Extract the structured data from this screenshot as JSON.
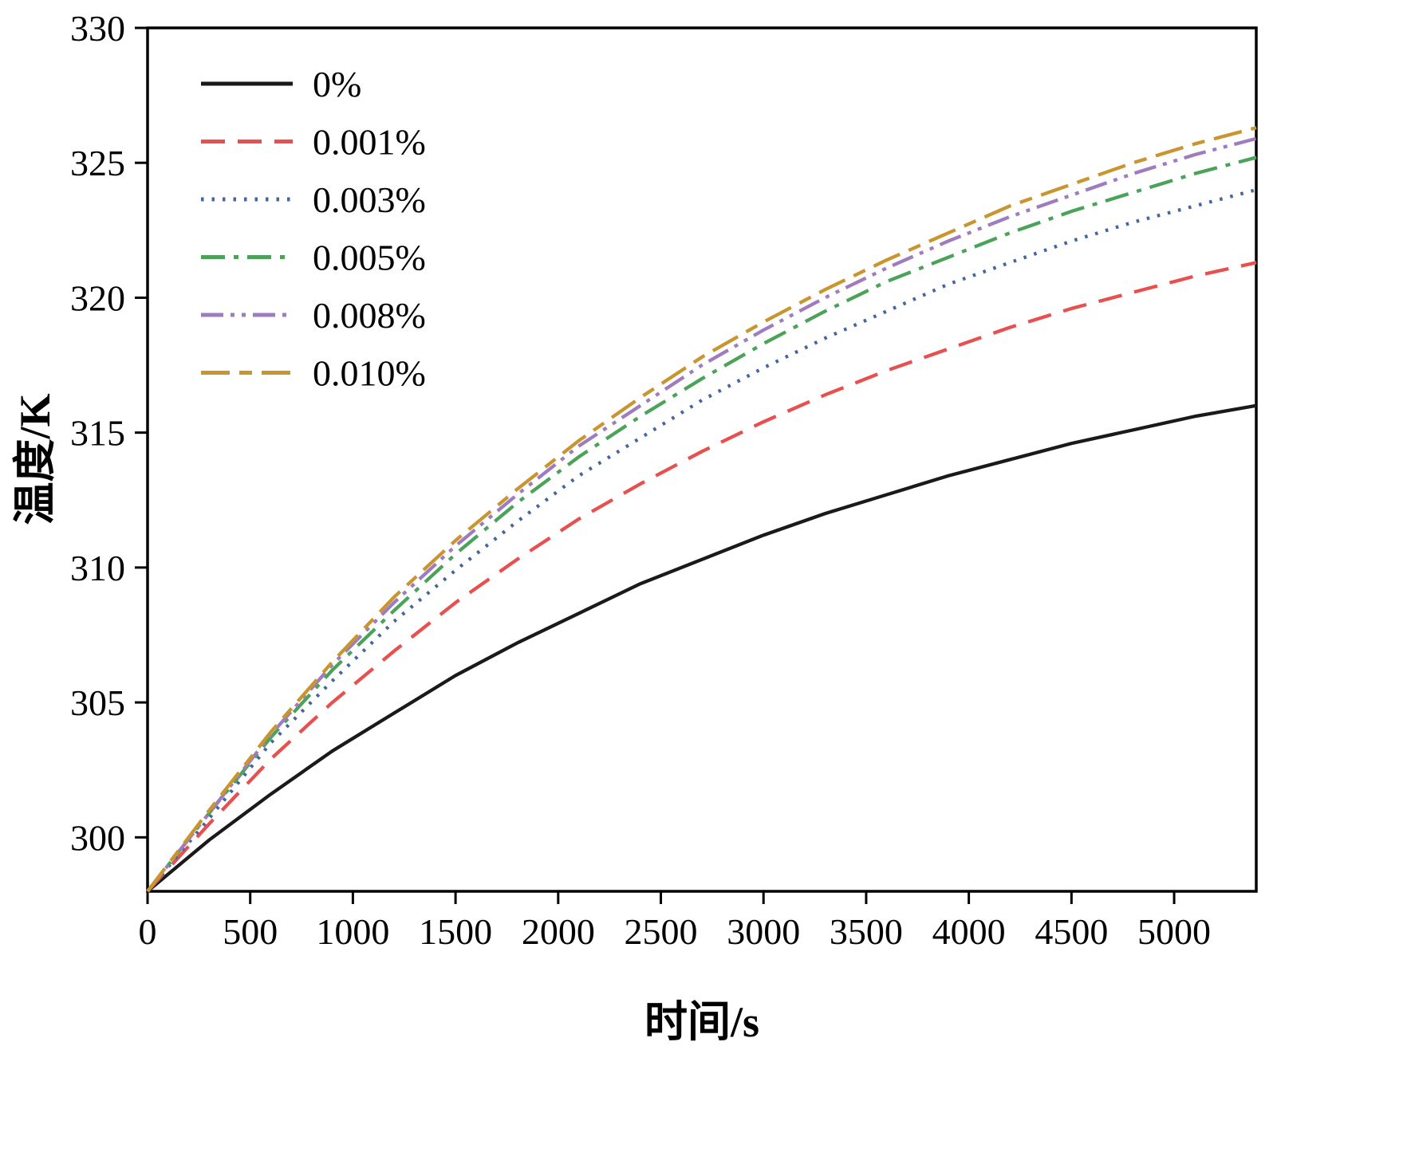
{
  "chart_data": {
    "type": "line",
    "title": "",
    "xlabel": "时间/s",
    "ylabel": "温度/K",
    "xlim": [
      0,
      5400
    ],
    "ylim": [
      298,
      330
    ],
    "x_ticks": [
      0,
      500,
      1000,
      1500,
      2000,
      2500,
      3000,
      3500,
      4000,
      4500,
      5000
    ],
    "y_ticks": [
      300,
      305,
      310,
      315,
      320,
      325,
      330
    ],
    "grid": false,
    "legend_position": "top-left",
    "x": [
      0,
      300,
      600,
      900,
      1200,
      1500,
      1800,
      2100,
      2400,
      2700,
      3000,
      3300,
      3600,
      3900,
      4200,
      4500,
      4800,
      5100,
      5400
    ],
    "series": [
      {
        "name": "0%",
        "color": "#1a1a1a",
        "dash": "solid",
        "values": [
          298.0,
          299.9,
          301.6,
          303.2,
          304.6,
          306.0,
          307.2,
          308.3,
          309.4,
          310.3,
          311.2,
          312.0,
          312.7,
          313.4,
          314.0,
          314.6,
          315.1,
          315.6,
          316.0
        ]
      },
      {
        "name": "0.001%",
        "color": "#e8504f",
        "dash": "dashed",
        "values": [
          298.0,
          300.5,
          302.9,
          305.0,
          306.9,
          308.7,
          310.3,
          311.8,
          313.1,
          314.3,
          315.4,
          316.4,
          317.3,
          318.1,
          318.9,
          319.6,
          320.2,
          320.8,
          321.3
        ]
      },
      {
        "name": "0.003%",
        "color": "#4565a0",
        "dash": "dotted",
        "values": [
          298.0,
          300.7,
          303.5,
          305.8,
          308.0,
          309.9,
          311.7,
          313.4,
          314.8,
          316.2,
          317.4,
          318.5,
          319.5,
          320.5,
          321.3,
          322.1,
          322.8,
          323.4,
          324.0
        ]
      },
      {
        "name": "0.005%",
        "color": "#4ba35a",
        "dash": "dashdot",
        "values": [
          298.0,
          300.9,
          303.7,
          306.2,
          308.4,
          310.5,
          312.4,
          314.1,
          315.6,
          317.0,
          318.3,
          319.5,
          320.6,
          321.5,
          322.4,
          323.2,
          323.9,
          324.6,
          325.2
        ]
      },
      {
        "name": "0.008%",
        "color": "#9f7cbf",
        "dash": "dashdotdot",
        "values": [
          298.0,
          300.9,
          303.8,
          306.4,
          308.7,
          310.8,
          312.7,
          314.5,
          316.0,
          317.5,
          318.8,
          320.0,
          321.1,
          322.1,
          323.0,
          323.8,
          324.6,
          325.3,
          325.9
        ]
      },
      {
        "name": "0.010%",
        "color": "#c9952f",
        "dash": "longdashdash",
        "values": [
          298.0,
          301.0,
          303.9,
          306.5,
          308.9,
          311.0,
          312.9,
          314.7,
          316.3,
          317.8,
          319.1,
          320.3,
          321.4,
          322.4,
          323.4,
          324.2,
          325.0,
          325.7,
          326.3
        ]
      }
    ]
  }
}
